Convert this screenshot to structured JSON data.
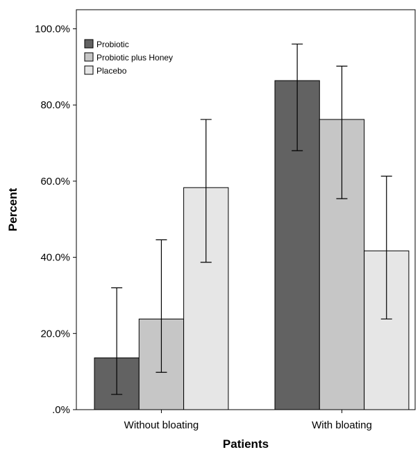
{
  "chart_data": {
    "type": "bar",
    "title": "",
    "xlabel": "Patients",
    "ylabel": "Percent",
    "categories": [
      "Without bloating",
      "With bloating"
    ],
    "yticks": [
      ".0%",
      "20.0%",
      "40.0%",
      "60.0%",
      "80.0%",
      "100.0%"
    ],
    "ylim": [
      0,
      105
    ],
    "grid": false,
    "legend_position": "top-left",
    "series": [
      {
        "name": "Probiotic",
        "color": "#626262",
        "values": [
          13.6,
          86.4
        ],
        "error_low": [
          4.0,
          68.0
        ],
        "error_high": [
          32.0,
          96.0
        ]
      },
      {
        "name": "Probiotic plus Honey",
        "color": "#c6c6c6",
        "values": [
          23.8,
          76.2
        ],
        "error_low": [
          9.8,
          55.4
        ],
        "error_high": [
          44.6,
          90.2
        ]
      },
      {
        "name": "Placebo",
        "color": "#e6e6e6",
        "values": [
          58.3,
          41.7
        ],
        "error_low": [
          38.7,
          23.8
        ],
        "error_high": [
          76.2,
          61.3
        ]
      }
    ]
  }
}
